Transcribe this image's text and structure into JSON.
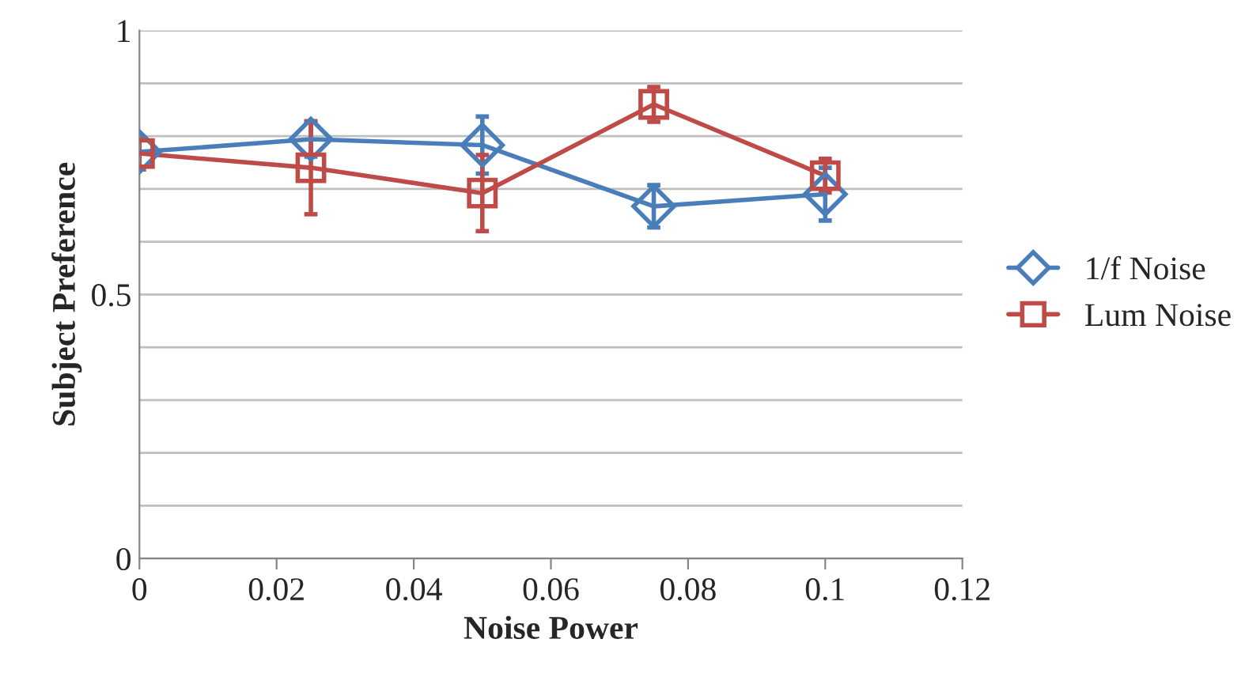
{
  "chart_data": {
    "type": "line",
    "xlabel": "Noise Power",
    "ylabel": "Subject Preference",
    "x": [
      0,
      0.025,
      0.05,
      0.075,
      0.1
    ],
    "series": [
      {
        "name": "1/f Noise",
        "color": "#4a7ebb",
        "marker": "diamond",
        "values": [
          0.77,
          0.794,
          0.783,
          0.667,
          0.69
        ],
        "errors": [
          null,
          0.033,
          0.054,
          0.04,
          0.05
        ]
      },
      {
        "name": "Lum Noise",
        "color": "#be4b48",
        "marker": "square",
        "values": [
          0.767,
          0.74,
          0.692,
          0.86,
          0.725
        ],
        "errors": [
          0.03,
          0.088,
          0.072,
          0.033,
          0.032
        ]
      }
    ],
    "xlim": [
      0,
      0.12
    ],
    "xticks": [
      0,
      0.02,
      0.04,
      0.06,
      0.08,
      0.1,
      0.12
    ],
    "ylim": [
      0,
      1
    ],
    "yticks": [
      0,
      {
        "value": 0.1,
        "label": null
      },
      {
        "value": 0.2,
        "label": null
      },
      {
        "value": 0.3,
        "label": null
      },
      {
        "value": 0.4,
        "label": null
      },
      0.5,
      {
        "value": 0.6,
        "label": null
      },
      {
        "value": 0.7,
        "label": null
      },
      {
        "value": 0.8,
        "label": null
      },
      {
        "value": 0.9,
        "label": null
      },
      1
    ],
    "grid": "y",
    "legend": "right",
    "line_style": "solid"
  }
}
